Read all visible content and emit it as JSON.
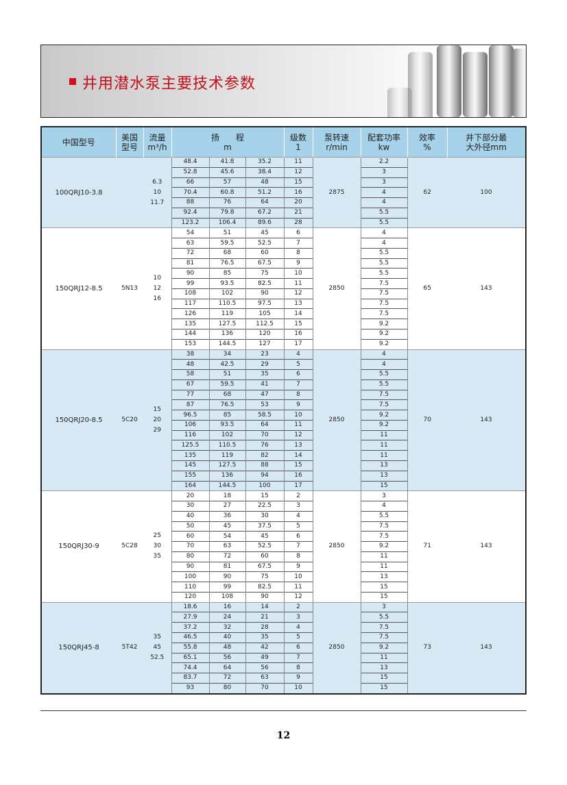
{
  "banner": {
    "title": "井用潜水泵主要技术参数"
  },
  "table": {
    "headers": {
      "cn_model": "中国型号",
      "us_model": "美国型号",
      "flow": "流量",
      "flow_unit": "m³/h",
      "head": "扬　　程",
      "head_unit": "m",
      "stages": "级数",
      "stages_unit": "1",
      "speed": "泵转速",
      "speed_unit": "r/min",
      "power": "配套功率",
      "power_unit": "kw",
      "efficiency": "效率",
      "efficiency_unit": "%",
      "diameter": "井下部分最",
      "diameter_2": "大外径mm"
    },
    "groups": [
      {
        "cn_model": "100QRJ10-3.8",
        "us_model": "",
        "flows": [
          "6.3",
          "10",
          "11.7"
        ],
        "speed": "2875",
        "efficiency": "62",
        "diameter": "100",
        "rows": [
          [
            "48.4",
            "41.8",
            "35.2",
            "11",
            "2.2"
          ],
          [
            "52.8",
            "45.6",
            "38.4",
            "12",
            "3"
          ],
          [
            "66",
            "57",
            "48",
            "15",
            "3"
          ],
          [
            "70.4",
            "60.8",
            "51.2",
            "16",
            "4"
          ],
          [
            "88",
            "76",
            "64",
            "20",
            "4"
          ],
          [
            "92.4",
            "79.8",
            "67.2",
            "21",
            "5.5"
          ],
          [
            "123.2",
            "106.4",
            "89.6",
            "28",
            "5.5"
          ]
        ]
      },
      {
        "cn_model": "150QRJ12-8.5",
        "us_model": "5N13",
        "flows": [
          "10",
          "12",
          "16"
        ],
        "speed": "2850",
        "efficiency": "65",
        "diameter": "143",
        "rows": [
          [
            "54",
            "51",
            "45",
            "6",
            "4"
          ],
          [
            "63",
            "59.5",
            "52.5",
            "7",
            "4"
          ],
          [
            "72",
            "68",
            "60",
            "8",
            "5.5"
          ],
          [
            "81",
            "76.5",
            "67.5",
            "9",
            "5.5"
          ],
          [
            "90",
            "85",
            "75",
            "10",
            "5.5"
          ],
          [
            "99",
            "93.5",
            "82.5",
            "11",
            "7.5"
          ],
          [
            "108",
            "102",
            "90",
            "12",
            "7.5"
          ],
          [
            "117",
            "110.5",
            "97.5",
            "13",
            "7.5"
          ],
          [
            "126",
            "119",
            "105",
            "14",
            "7.5"
          ],
          [
            "135",
            "127.5",
            "112.5",
            "15",
            "9.2"
          ],
          [
            "144",
            "136",
            "120",
            "16",
            "9.2"
          ],
          [
            "153",
            "144.5",
            "127",
            "17",
            "9.2"
          ]
        ]
      },
      {
        "cn_model": "150QRJ20-8.5",
        "us_model": "5C20",
        "flows": [
          "15",
          "20",
          "29"
        ],
        "speed": "2850",
        "efficiency": "70",
        "diameter": "143",
        "rows": [
          [
            "38",
            "34",
            "23",
            "4",
            "4"
          ],
          [
            "48",
            "42.5",
            "29",
            "5",
            "4"
          ],
          [
            "58",
            "51",
            "35",
            "6",
            "5.5"
          ],
          [
            "67",
            "59.5",
            "41",
            "7",
            "5.5"
          ],
          [
            "77",
            "68",
            "47",
            "8",
            "7.5"
          ],
          [
            "87",
            "76.5",
            "53",
            "9",
            "7.5"
          ],
          [
            "96.5",
            "85",
            "58.5",
            "10",
            "9.2"
          ],
          [
            "106",
            "93.5",
            "64",
            "11",
            "9.2"
          ],
          [
            "116",
            "102",
            "70",
            "12",
            "11"
          ],
          [
            "125.5",
            "110.5",
            "76",
            "13",
            "11"
          ],
          [
            "135",
            "119",
            "82",
            "14",
            "11"
          ],
          [
            "145",
            "127.5",
            "88",
            "15",
            "13"
          ],
          [
            "155",
            "136",
            "94",
            "16",
            "13"
          ],
          [
            "164",
            "144.5",
            "100",
            "17",
            "15"
          ]
        ]
      },
      {
        "cn_model": "150QRJ30-9",
        "us_model": "5C28",
        "flows": [
          "25",
          "30",
          "35"
        ],
        "speed": "2850",
        "efficiency": "71",
        "diameter": "143",
        "rows": [
          [
            "20",
            "18",
            "15",
            "2",
            "3"
          ],
          [
            "30",
            "27",
            "22.5",
            "3",
            "4"
          ],
          [
            "40",
            "36",
            "30",
            "4",
            "5.5"
          ],
          [
            "50",
            "45",
            "37.5",
            "5",
            "7.5"
          ],
          [
            "60",
            "54",
            "45",
            "6",
            "7.5"
          ],
          [
            "70",
            "63",
            "52.5",
            "7",
            "9.2"
          ],
          [
            "80",
            "72",
            "60",
            "8",
            "11"
          ],
          [
            "90",
            "81",
            "67.5",
            "9",
            "11"
          ],
          [
            "100",
            "90",
            "75",
            "10",
            "13"
          ],
          [
            "110",
            "99",
            "82.5",
            "11",
            "15"
          ],
          [
            "120",
            "108",
            "90",
            "12",
            "15"
          ]
        ]
      },
      {
        "cn_model": "150QRJ45-8",
        "us_model": "5T42",
        "flows": [
          "35",
          "45",
          "52.5"
        ],
        "speed": "2850",
        "efficiency": "73",
        "diameter": "143",
        "rows": [
          [
            "18.6",
            "16",
            "14",
            "2",
            "3"
          ],
          [
            "27.9",
            "24",
            "21",
            "3",
            "5.5"
          ],
          [
            "37.2",
            "32",
            "28",
            "4",
            "7.5"
          ],
          [
            "46.5",
            "40",
            "35",
            "5",
            "7.5"
          ],
          [
            "55.8",
            "48",
            "42",
            "6",
            "9.2"
          ],
          [
            "65.1",
            "56",
            "49",
            "7",
            "11"
          ],
          [
            "74.4",
            "64",
            "56",
            "8",
            "13"
          ],
          [
            "83.7",
            "72",
            "63",
            "9",
            "15"
          ],
          [
            "93",
            "80",
            "70",
            "10",
            "15"
          ]
        ]
      }
    ]
  },
  "footer": {
    "page_number": "12"
  }
}
